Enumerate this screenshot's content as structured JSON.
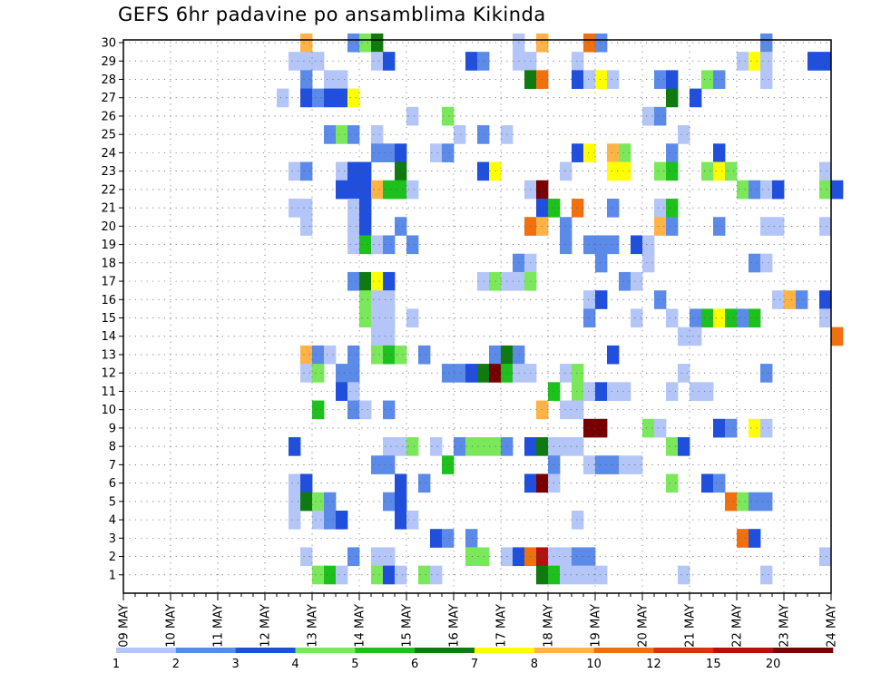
{
  "chart_data": {
    "type": "heatmap",
    "title": "GEFS 6hr padavine po ansamblima Kikinda",
    "xlabel": "",
    "ylabel": "",
    "x_ticks": [
      "09 MAY",
      "10 MAY",
      "11 MAY",
      "12 MAY",
      "13 MAY",
      "14 MAY",
      "15 MAY",
      "16 MAY",
      "17 MAY",
      "18 MAY",
      "19 MAY",
      "20 MAY",
      "21 MAY",
      "22 MAY",
      "23 MAY",
      "24 MAY"
    ],
    "x_range": [
      "09 MAY 00Z",
      "24 MAY 00Z"
    ],
    "time_step_hours": 6,
    "y_ticks": [
      "1",
      "2",
      "3",
      "4",
      "5",
      "6",
      "7",
      "8",
      "9",
      "10",
      "11",
      "12",
      "13",
      "14",
      "15",
      "16",
      "17",
      "18",
      "19",
      "20",
      "21",
      "22",
      "23",
      "24",
      "25",
      "26",
      "27",
      "28",
      "29",
      "30"
    ],
    "ylim": [
      0,
      30
    ],
    "grid": true,
    "legend": {
      "placement": "bottom",
      "labels": [
        "1",
        "2",
        "3",
        "4",
        "5",
        "6",
        "7",
        "8",
        "10",
        "12",
        "15",
        "20"
      ],
      "colors": [
        "#b3c6f7",
        "#5b8ae8",
        "#1f4fdc",
        "#7be85b",
        "#1ec01e",
        "#0f7a0f",
        "#ffff00",
        "#ffb347",
        "#f07010",
        "#dc3010",
        "#b41010",
        "#780000"
      ]
    },
    "class_colors": [
      "#b3c6f7",
      "#5b8ae8",
      "#1f4fdc",
      "#7be85b",
      "#1ec01e",
      "#0f7a0f",
      "#ffff00",
      "#ffb347",
      "#f07010",
      "#dc3010",
      "#b41010",
      "#780000"
    ],
    "columns": [
      "x_step (6-hourly index from 09 MAY 00Z)",
      "member",
      "class (0=1-2 ... 11=>20)"
    ],
    "cells": [
      [
        15,
        30,
        7
      ],
      [
        19,
        30,
        1
      ],
      [
        20,
        30,
        3
      ],
      [
        21,
        30,
        5
      ],
      [
        33,
        30,
        0
      ],
      [
        35,
        30,
        7
      ],
      [
        39,
        30,
        8
      ],
      [
        40,
        30,
        1
      ],
      [
        54,
        30,
        1
      ],
      [
        14,
        29,
        0
      ],
      [
        15,
        29,
        0
      ],
      [
        16,
        29,
        0
      ],
      [
        21,
        29,
        0
      ],
      [
        22,
        29,
        2
      ],
      [
        29,
        29,
        2
      ],
      [
        30,
        29,
        1
      ],
      [
        33,
        29,
        0
      ],
      [
        34,
        29,
        0
      ],
      [
        38,
        29,
        0
      ],
      [
        52,
        29,
        0
      ],
      [
        53,
        29,
        6
      ],
      [
        54,
        29,
        0
      ],
      [
        58,
        29,
        2
      ],
      [
        59,
        29,
        2
      ],
      [
        15,
        28,
        1
      ],
      [
        17,
        28,
        0
      ],
      [
        18,
        28,
        0
      ],
      [
        34,
        28,
        5
      ],
      [
        35,
        28,
        8
      ],
      [
        38,
        28,
        2
      ],
      [
        39,
        28,
        0
      ],
      [
        40,
        28,
        6
      ],
      [
        41,
        28,
        0
      ],
      [
        45,
        28,
        1
      ],
      [
        46,
        28,
        2
      ],
      [
        49,
        28,
        3
      ],
      [
        50,
        28,
        1
      ],
      [
        54,
        28,
        0
      ],
      [
        13,
        27,
        0
      ],
      [
        15,
        27,
        2
      ],
      [
        16,
        27,
        1
      ],
      [
        17,
        27,
        2
      ],
      [
        18,
        27,
        2
      ],
      [
        19,
        27,
        6
      ],
      [
        46,
        27,
        5
      ],
      [
        48,
        27,
        2
      ],
      [
        24,
        26,
        0
      ],
      [
        27,
        26,
        3
      ],
      [
        44,
        26,
        0
      ],
      [
        45,
        26,
        1
      ],
      [
        17,
        25,
        1
      ],
      [
        18,
        25,
        3
      ],
      [
        19,
        25,
        1
      ],
      [
        21,
        25,
        0
      ],
      [
        28,
        25,
        0
      ],
      [
        30,
        25,
        1
      ],
      [
        32,
        25,
        0
      ],
      [
        47,
        25,
        0
      ],
      [
        21,
        24,
        1
      ],
      [
        22,
        24,
        1
      ],
      [
        23,
        24,
        2
      ],
      [
        26,
        24,
        0
      ],
      [
        27,
        24,
        1
      ],
      [
        38,
        24,
        2
      ],
      [
        39,
        24,
        6
      ],
      [
        41,
        24,
        7
      ],
      [
        42,
        24,
        3
      ],
      [
        46,
        24,
        1
      ],
      [
        50,
        24,
        2
      ],
      [
        14,
        23,
        0
      ],
      [
        15,
        23,
        1
      ],
      [
        18,
        23,
        0
      ],
      [
        19,
        23,
        2
      ],
      [
        20,
        23,
        2
      ],
      [
        23,
        23,
        5
      ],
      [
        30,
        23,
        2
      ],
      [
        31,
        23,
        6
      ],
      [
        37,
        23,
        0
      ],
      [
        41,
        23,
        6
      ],
      [
        42,
        23,
        6
      ],
      [
        45,
        23,
        3
      ],
      [
        46,
        23,
        4
      ],
      [
        49,
        23,
        3
      ],
      [
        50,
        23,
        6
      ],
      [
        51,
        23,
        3
      ],
      [
        59,
        23,
        0
      ],
      [
        18,
        22,
        2
      ],
      [
        19,
        22,
        2
      ],
      [
        20,
        22,
        2
      ],
      [
        21,
        22,
        7
      ],
      [
        22,
        22,
        4
      ],
      [
        23,
        22,
        4
      ],
      [
        24,
        22,
        0
      ],
      [
        34,
        22,
        0
      ],
      [
        35,
        22,
        11
      ],
      [
        52,
        22,
        3
      ],
      [
        53,
        22,
        1
      ],
      [
        54,
        22,
        0
      ],
      [
        55,
        22,
        2
      ],
      [
        59,
        22,
        3
      ],
      [
        60,
        22,
        2
      ],
      [
        14,
        21,
        0
      ],
      [
        15,
        21,
        0
      ],
      [
        19,
        21,
        0
      ],
      [
        20,
        21,
        2
      ],
      [
        35,
        21,
        2
      ],
      [
        36,
        21,
        4
      ],
      [
        38,
        21,
        8
      ],
      [
        41,
        21,
        1
      ],
      [
        45,
        21,
        0
      ],
      [
        46,
        21,
        4
      ],
      [
        15,
        20,
        0
      ],
      [
        19,
        20,
        0
      ],
      [
        20,
        20,
        2
      ],
      [
        23,
        20,
        1
      ],
      [
        34,
        20,
        8
      ],
      [
        35,
        20,
        7
      ],
      [
        37,
        20,
        1
      ],
      [
        45,
        20,
        7
      ],
      [
        46,
        20,
        1
      ],
      [
        50,
        20,
        1
      ],
      [
        54,
        20,
        0
      ],
      [
        55,
        20,
        0
      ],
      [
        59,
        20,
        0
      ],
      [
        19,
        19,
        0
      ],
      [
        20,
        19,
        4
      ],
      [
        21,
        19,
        0
      ],
      [
        22,
        19,
        1
      ],
      [
        24,
        19,
        1
      ],
      [
        37,
        19,
        1
      ],
      [
        39,
        19,
        1
      ],
      [
        40,
        19,
        1
      ],
      [
        41,
        19,
        1
      ],
      [
        43,
        19,
        2
      ],
      [
        44,
        19,
        0
      ],
      [
        33,
        18,
        1
      ],
      [
        34,
        18,
        0
      ],
      [
        40,
        18,
        1
      ],
      [
        44,
        18,
        0
      ],
      [
        53,
        18,
        1
      ],
      [
        54,
        18,
        0
      ],
      [
        19,
        17,
        1
      ],
      [
        20,
        17,
        5
      ],
      [
        21,
        17,
        6
      ],
      [
        22,
        17,
        2
      ],
      [
        30,
        17,
        0
      ],
      [
        31,
        17,
        3
      ],
      [
        32,
        17,
        0
      ],
      [
        33,
        17,
        0
      ],
      [
        34,
        17,
        3
      ],
      [
        42,
        17,
        1
      ],
      [
        43,
        17,
        0
      ],
      [
        20,
        16,
        3
      ],
      [
        21,
        16,
        0
      ],
      [
        22,
        16,
        0
      ],
      [
        39,
        16,
        0
      ],
      [
        40,
        16,
        2
      ],
      [
        45,
        16,
        1
      ],
      [
        55,
        16,
        0
      ],
      [
        56,
        16,
        7
      ],
      [
        57,
        16,
        1
      ],
      [
        59,
        16,
        2
      ],
      [
        20,
        15,
        3
      ],
      [
        21,
        15,
        0
      ],
      [
        22,
        15,
        0
      ],
      [
        24,
        15,
        0
      ],
      [
        39,
        15,
        1
      ],
      [
        43,
        15,
        0
      ],
      [
        46,
        15,
        0
      ],
      [
        48,
        15,
        1
      ],
      [
        49,
        15,
        4
      ],
      [
        50,
        15,
        6
      ],
      [
        51,
        15,
        4
      ],
      [
        52,
        15,
        1
      ],
      [
        53,
        15,
        4
      ],
      [
        59,
        15,
        0
      ],
      [
        21,
        14,
        0
      ],
      [
        22,
        14,
        0
      ],
      [
        47,
        14,
        0
      ],
      [
        48,
        14,
        0
      ],
      [
        60,
        14,
        8
      ],
      [
        15,
        13,
        7
      ],
      [
        16,
        13,
        1
      ],
      [
        17,
        13,
        0
      ],
      [
        19,
        13,
        1
      ],
      [
        21,
        13,
        3
      ],
      [
        22,
        13,
        4
      ],
      [
        23,
        13,
        3
      ],
      [
        25,
        13,
        1
      ],
      [
        31,
        13,
        1
      ],
      [
        32,
        13,
        5
      ],
      [
        33,
        13,
        1
      ],
      [
        41,
        13,
        2
      ],
      [
        15,
        12,
        0
      ],
      [
        16,
        12,
        3
      ],
      [
        18,
        12,
        1
      ],
      [
        19,
        12,
        1
      ],
      [
        27,
        12,
        1
      ],
      [
        28,
        12,
        1
      ],
      [
        29,
        12,
        2
      ],
      [
        30,
        12,
        5
      ],
      [
        31,
        12,
        11
      ],
      [
        32,
        12,
        4
      ],
      [
        33,
        12,
        0
      ],
      [
        34,
        12,
        0
      ],
      [
        37,
        12,
        0
      ],
      [
        38,
        12,
        3
      ],
      [
        47,
        12,
        0
      ],
      [
        54,
        12,
        1
      ],
      [
        18,
        11,
        2
      ],
      [
        19,
        11,
        0
      ],
      [
        36,
        11,
        4
      ],
      [
        38,
        11,
        3
      ],
      [
        39,
        11,
        0
      ],
      [
        40,
        11,
        2
      ],
      [
        41,
        11,
        0
      ],
      [
        42,
        11,
        0
      ],
      [
        46,
        11,
        0
      ],
      [
        48,
        11,
        0
      ],
      [
        49,
        11,
        0
      ],
      [
        16,
        10,
        4
      ],
      [
        19,
        10,
        1
      ],
      [
        20,
        10,
        0
      ],
      [
        22,
        10,
        1
      ],
      [
        35,
        10,
        7
      ],
      [
        37,
        10,
        0
      ],
      [
        38,
        10,
        0
      ],
      [
        39,
        9,
        11
      ],
      [
        40,
        9,
        11
      ],
      [
        44,
        9,
        3
      ],
      [
        45,
        9,
        0
      ],
      [
        50,
        9,
        2
      ],
      [
        51,
        9,
        1
      ],
      [
        53,
        9,
        6
      ],
      [
        54,
        9,
        0
      ],
      [
        14,
        8,
        2
      ],
      [
        22,
        8,
        0
      ],
      [
        23,
        8,
        0
      ],
      [
        24,
        8,
        3
      ],
      [
        26,
        8,
        0
      ],
      [
        28,
        8,
        1
      ],
      [
        29,
        8,
        3
      ],
      [
        30,
        8,
        3
      ],
      [
        31,
        8,
        3
      ],
      [
        32,
        8,
        1
      ],
      [
        34,
        8,
        2
      ],
      [
        35,
        8,
        5
      ],
      [
        36,
        8,
        0
      ],
      [
        37,
        8,
        0
      ],
      [
        38,
        8,
        0
      ],
      [
        46,
        8,
        3
      ],
      [
        47,
        8,
        2
      ],
      [
        21,
        7,
        1
      ],
      [
        22,
        7,
        1
      ],
      [
        27,
        7,
        4
      ],
      [
        36,
        7,
        1
      ],
      [
        39,
        7,
        0
      ],
      [
        40,
        7,
        1
      ],
      [
        41,
        7,
        1
      ],
      [
        42,
        7,
        0
      ],
      [
        43,
        7,
        0
      ],
      [
        14,
        6,
        0
      ],
      [
        15,
        6,
        2
      ],
      [
        23,
        6,
        2
      ],
      [
        25,
        6,
        1
      ],
      [
        34,
        6,
        2
      ],
      [
        35,
        6,
        11
      ],
      [
        36,
        6,
        0
      ],
      [
        46,
        6,
        3
      ],
      [
        49,
        6,
        2
      ],
      [
        50,
        6,
        1
      ],
      [
        14,
        5,
        0
      ],
      [
        15,
        5,
        5
      ],
      [
        16,
        5,
        3
      ],
      [
        17,
        5,
        1
      ],
      [
        22,
        5,
        1
      ],
      [
        23,
        5,
        2
      ],
      [
        51,
        5,
        8
      ],
      [
        52,
        5,
        3
      ],
      [
        53,
        5,
        1
      ],
      [
        54,
        5,
        1
      ],
      [
        14,
        4,
        0
      ],
      [
        16,
        4,
        0
      ],
      [
        17,
        4,
        1
      ],
      [
        18,
        4,
        2
      ],
      [
        23,
        4,
        2
      ],
      [
        24,
        4,
        0
      ],
      [
        38,
        4,
        0
      ],
      [
        26,
        3,
        2
      ],
      [
        27,
        3,
        1
      ],
      [
        29,
        3,
        1
      ],
      [
        52,
        3,
        8
      ],
      [
        53,
        3,
        2
      ],
      [
        15,
        2,
        0
      ],
      [
        19,
        2,
        1
      ],
      [
        21,
        2,
        0
      ],
      [
        22,
        2,
        0
      ],
      [
        29,
        2,
        3
      ],
      [
        30,
        2,
        3
      ],
      [
        32,
        2,
        0
      ],
      [
        33,
        2,
        2
      ],
      [
        34,
        2,
        8
      ],
      [
        35,
        2,
        10
      ],
      [
        36,
        2,
        0
      ],
      [
        37,
        2,
        0
      ],
      [
        38,
        2,
        1
      ],
      [
        39,
        2,
        1
      ],
      [
        59,
        2,
        0
      ],
      [
        16,
        1,
        3
      ],
      [
        17,
        1,
        4
      ],
      [
        18,
        1,
        0
      ],
      [
        21,
        1,
        3
      ],
      [
        22,
        1,
        2
      ],
      [
        23,
        1,
        0
      ],
      [
        25,
        1,
        3
      ],
      [
        26,
        1,
        0
      ],
      [
        35,
        1,
        5
      ],
      [
        36,
        1,
        4
      ],
      [
        37,
        1,
        0
      ],
      [
        38,
        1,
        0
      ],
      [
        39,
        1,
        0
      ],
      [
        40,
        1,
        0
      ],
      [
        47,
        1,
        0
      ],
      [
        54,
        1,
        0
      ]
    ]
  }
}
